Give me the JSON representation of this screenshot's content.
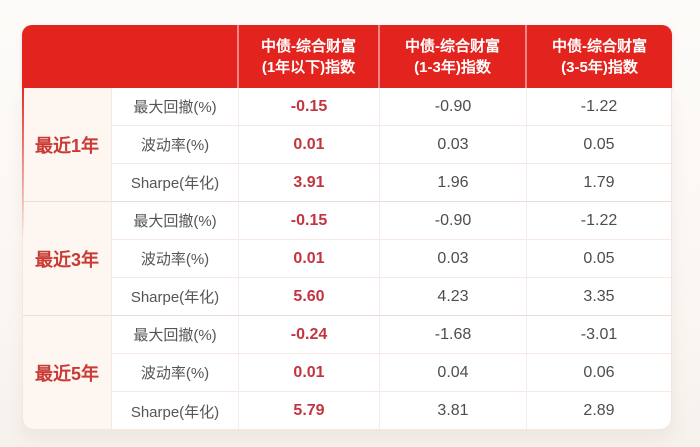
{
  "colors": {
    "header_bg": "#e2231e",
    "header_text": "#ffffff",
    "accent_value_red": "#c23540",
    "group_label_red": "#c83a33",
    "body_text_gray": "#4d4d4d",
    "group_col_bg": "#fdf6f1"
  },
  "table": {
    "header": {
      "col1": "中债-综合财富\n(1年以下)指数",
      "col2": "中债-综合财富\n(1-3年)指数",
      "col3": "中债-综合财富\n(3-5年)指数"
    },
    "groups": [
      {
        "label": "最近1年",
        "rows": [
          {
            "metric": "最大回撤(%)",
            "values": [
              "-0.15",
              "-0.90",
              "-1.22"
            ]
          },
          {
            "metric": "波动率(%)",
            "values": [
              "0.01",
              "0.03",
              "0.05"
            ]
          },
          {
            "metric": "Sharpe(年化)",
            "values": [
              "3.91",
              "1.96",
              "1.79"
            ]
          }
        ]
      },
      {
        "label": "最近3年",
        "rows": [
          {
            "metric": "最大回撤(%)",
            "values": [
              "-0.15",
              "-0.90",
              "-1.22"
            ]
          },
          {
            "metric": "波动率(%)",
            "values": [
              "0.01",
              "0.03",
              "0.05"
            ]
          },
          {
            "metric": "Sharpe(年化)",
            "values": [
              "5.60",
              "4.23",
              "3.35"
            ]
          }
        ]
      },
      {
        "label": "最近5年",
        "rows": [
          {
            "metric": "最大回撤(%)",
            "values": [
              "-0.24",
              "-1.68",
              "-3.01"
            ]
          },
          {
            "metric": "波动率(%)",
            "values": [
              "0.01",
              "0.04",
              "0.06"
            ]
          },
          {
            "metric": "Sharpe(年化)",
            "values": [
              "5.79",
              "3.81",
              "2.89"
            ]
          }
        ]
      }
    ]
  },
  "chart_data": {
    "type": "table",
    "title": "",
    "columns": [
      "",
      "",
      "中债-综合财富(1年以下)指数",
      "中债-综合财富(1-3年)指数",
      "中债-综合财富(3-5年)指数"
    ],
    "rows": [
      [
        "最近1年",
        "最大回撤(%)",
        -0.15,
        -0.9,
        -1.22
      ],
      [
        "最近1年",
        "波动率(%)",
        0.01,
        0.03,
        0.05
      ],
      [
        "最近1年",
        "Sharpe(年化)",
        3.91,
        1.96,
        1.79
      ],
      [
        "最近3年",
        "最大回撤(%)",
        -0.15,
        -0.9,
        -1.22
      ],
      [
        "最近3年",
        "波动率(%)",
        0.01,
        0.03,
        0.05
      ],
      [
        "最近3年",
        "Sharpe(年化)",
        5.6,
        4.23,
        3.35
      ],
      [
        "最近5年",
        "最大回撤(%)",
        -0.24,
        -1.68,
        -3.01
      ],
      [
        "最近5年",
        "波动率(%)",
        0.01,
        0.04,
        0.06
      ],
      [
        "最近5年",
        "Sharpe(年化)",
        5.79,
        3.81,
        2.89
      ]
    ]
  }
}
